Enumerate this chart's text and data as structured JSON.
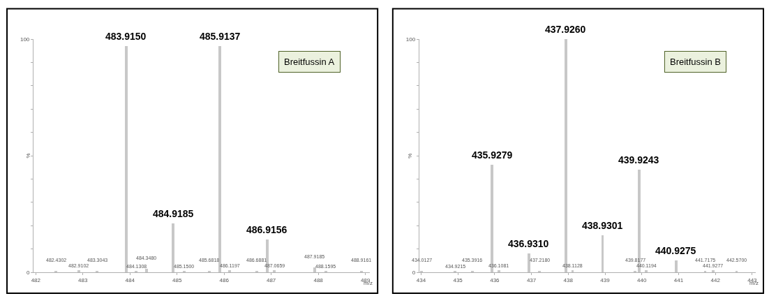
{
  "chart_data": [
    {
      "type": "bar",
      "xlabel": "m/z",
      "ylabel": "%",
      "color": "#c8c8c8",
      "x": [
        482.4302,
        482.9102,
        483.3043,
        483.915,
        484.1308,
        484.348,
        484.9185,
        485.15,
        485.6818,
        485.9137,
        486.1197,
        486.6881,
        486.9156,
        487.0659,
        487.9185,
        488.1595,
        488.9161
      ],
      "values": [
        0.5,
        1,
        0.5,
        97,
        0.5,
        1.5,
        21,
        0.5,
        0.5,
        97,
        1,
        0.5,
        14,
        1,
        2,
        0.5,
        0.5
      ],
      "xlim": [
        481.95,
        489.1
      ],
      "xticks": [
        482,
        483,
        484,
        485,
        486,
        487,
        488,
        489
      ],
      "ylim": [
        0,
        100
      ],
      "yticks": [
        0,
        {
          "value": 10,
          "label": null
        },
        {
          "value": 20,
          "label": null
        },
        {
          "value": 30,
          "label": null
        },
        {
          "value": 40,
          "label": null
        },
        {
          "value": 50,
          "label": null
        },
        {
          "value": 60,
          "label": null
        },
        {
          "value": 70,
          "label": null
        },
        {
          "value": 80,
          "label": null
        },
        {
          "value": 90,
          "label": null
        },
        100
      ],
      "annotations": [
        "Breitfussin A",
        {
          "text": "482.4302",
          "x": 482.4302,
          "y": 0.5
        },
        {
          "text": "482.9102",
          "x": 482.9102,
          "y": 1
        },
        {
          "text": "483.3043",
          "x": 483.3043,
          "y": 0.5
        },
        {
          "text": "483.9150",
          "x": 483.915,
          "y": 97
        },
        {
          "text": "484.1308",
          "x": 484.1308,
          "y": 0.5
        },
        {
          "text": "484.3480",
          "x": 484.348,
          "y": 1.5
        },
        {
          "text": "484.9185",
          "x": 484.9185,
          "y": 21
        },
        {
          "text": "485.1500",
          "x": 485.15,
          "y": 0.5
        },
        {
          "text": "485.6818",
          "x": 485.6818,
          "y": 0.5
        },
        {
          "text": "485.9137",
          "x": 485.9137,
          "y": 97
        },
        {
          "text": "486.1197",
          "x": 486.1197,
          "y": 1
        },
        {
          "text": "486.6881",
          "x": 486.6881,
          "y": 0.5
        },
        {
          "text": "486.9156",
          "x": 486.9156,
          "y": 14
        },
        {
          "text": "487.0659",
          "x": 487.0659,
          "y": 1
        },
        {
          "text": "487.9185",
          "x": 487.9185,
          "y": 2
        },
        {
          "text": "488.1595",
          "x": 488.1595,
          "y": 0.5
        },
        {
          "text": "488.9161",
          "x": 488.9161,
          "y": 0.5
        }
      ]
    },
    {
      "type": "bar",
      "xlabel": "m/z",
      "ylabel": "%",
      "color": "#c8c8c8",
      "x": [
        434.0127,
        434.9215,
        435.3916,
        435.9279,
        436.1081,
        436.931,
        437.218,
        437.926,
        438.1128,
        438.9301,
        439.8177,
        439.9243,
        440.1194,
        440.9275,
        441.7175,
        441.9277,
        442.57
      ],
      "values": [
        0.5,
        0.5,
        0.5,
        46,
        1,
        8,
        0.5,
        100,
        1,
        16,
        0.5,
        44,
        1,
        5,
        0.5,
        1,
        0.5
      ],
      "xlim": [
        433.95,
        443.1
      ],
      "xticks": [
        434,
        435,
        436,
        437,
        438,
        439,
        440,
        441,
        442,
        443
      ],
      "ylim": [
        0,
        100
      ],
      "yticks": [
        0,
        {
          "value": 10,
          "label": null
        },
        {
          "value": 20,
          "label": null
        },
        {
          "value": 30,
          "label": null
        },
        {
          "value": 40,
          "label": null
        },
        {
          "value": 50,
          "label": null
        },
        {
          "value": 60,
          "label": null
        },
        {
          "value": 70,
          "label": null
        },
        {
          "value": 80,
          "label": null
        },
        {
          "value": 90,
          "label": null
        },
        100
      ],
      "annotations": [
        "Breitfussin B",
        {
          "text": "434.0127",
          "x": 434.0127,
          "y": 0.5
        },
        {
          "text": "434.9215",
          "x": 434.9215,
          "y": 0.5
        },
        {
          "text": "435.3916",
          "x": 435.3916,
          "y": 0.5
        },
        {
          "text": "435.9279",
          "x": 435.9279,
          "y": 46
        },
        {
          "text": "436.1081",
          "x": 436.1081,
          "y": 1
        },
        {
          "text": "436.9310",
          "x": 436.931,
          "y": 8
        },
        {
          "text": "437.2180",
          "x": 437.218,
          "y": 0.5
        },
        {
          "text": "437.9260",
          "x": 437.926,
          "y": 100
        },
        {
          "text": "438.1128",
          "x": 438.1128,
          "y": 1
        },
        {
          "text": "438.9301",
          "x": 438.9301,
          "y": 16
        },
        {
          "text": "439.8177",
          "x": 439.8177,
          "y": 0.5
        },
        {
          "text": "439.9243",
          "x": 439.9243,
          "y": 44
        },
        {
          "text": "440.1194",
          "x": 440.1194,
          "y": 1
        },
        {
          "text": "440.9275",
          "x": 440.9275,
          "y": 5
        },
        {
          "text": "441.7175",
          "x": 441.7175,
          "y": 0.5
        },
        {
          "text": "441.9277",
          "x": 441.9277,
          "y": 1
        },
        {
          "text": "442.5700",
          "x": 442.57,
          "y": 0.5
        }
      ]
    }
  ]
}
